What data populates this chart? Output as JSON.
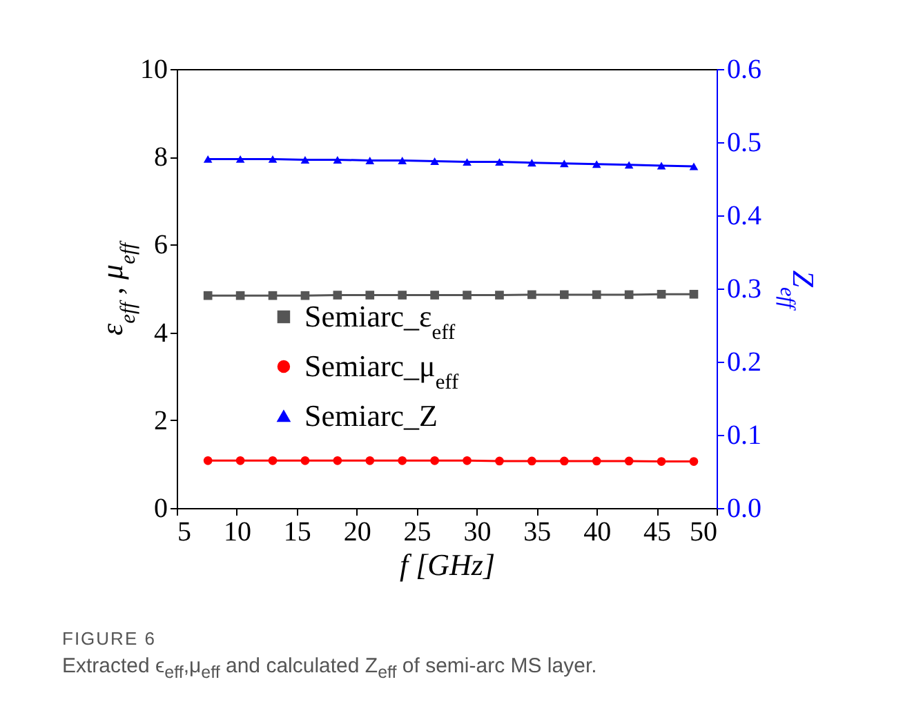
{
  "chart_data": {
    "type": "line",
    "xlabel": "f [GHz]",
    "ylabel": "ε$_{eff}$ , μ$_{eff}$",
    "y2label": "Z$_{eff}$",
    "annotations": [
      "FIGURE 6",
      "Extracted ϵ$_{eff}$,μ$_{eff}$ and calculated Z$_{eff}$ of semi-arc MS layer."
    ],
    "x": [
      7.6,
      10.3,
      13,
      15.7,
      18.4,
      21.1,
      23.8,
      26.5,
      29.2,
      31.9,
      34.6,
      37.3,
      40,
      42.7,
      45.4,
      48.1
    ],
    "series": [
      {
        "name": "Semiarc_ε$_{eff}$",
        "color": "#555555",
        "marker": "square",
        "values": [
          4.84,
          4.84,
          4.84,
          4.84,
          4.85,
          4.85,
          4.85,
          4.85,
          4.85,
          4.85,
          4.86,
          4.86,
          4.86,
          4.86,
          4.87,
          4.87
        ]
      },
      {
        "name": "Semiarc_μ$_{eff}$",
        "color": "#ff0000",
        "marker": "circle",
        "values": [
          1.08,
          1.08,
          1.08,
          1.08,
          1.08,
          1.08,
          1.08,
          1.08,
          1.08,
          1.07,
          1.07,
          1.07,
          1.07,
          1.07,
          1.06,
          1.06
        ]
      },
      {
        "name": "Semiarc_Z",
        "color": "#0000ff",
        "marker": "triangle",
        "axis": "y2",
        "values": [
          0.477,
          0.477,
          0.477,
          0.476,
          0.476,
          0.475,
          0.475,
          0.474,
          0.473,
          0.473,
          0.472,
          0.471,
          0.47,
          0.469,
          0.468,
          0.467
        ]
      }
    ],
    "xlim": [
      5,
      50
    ],
    "xticks": [
      5,
      10,
      15,
      20,
      25,
      30,
      35,
      40,
      45,
      50
    ],
    "ylim": [
      0,
      10
    ],
    "yticks": [
      0,
      2,
      4,
      6,
      8,
      10
    ],
    "y2lim": [
      0,
      0.6
    ],
    "y2ticks": [
      {
        "value": 0,
        "label": "0.0"
      },
      {
        "value": 0.1,
        "label": "0.1"
      },
      {
        "value": 0.2,
        "label": "0.2"
      },
      {
        "value": 0.3,
        "label": "0.3"
      },
      {
        "value": 0.4,
        "label": "0.4"
      },
      {
        "value": 0.5,
        "label": "0.5"
      },
      {
        "value": 0.6,
        "label": "0.6"
      }
    ],
    "legend": "center",
    "grid": false
  }
}
